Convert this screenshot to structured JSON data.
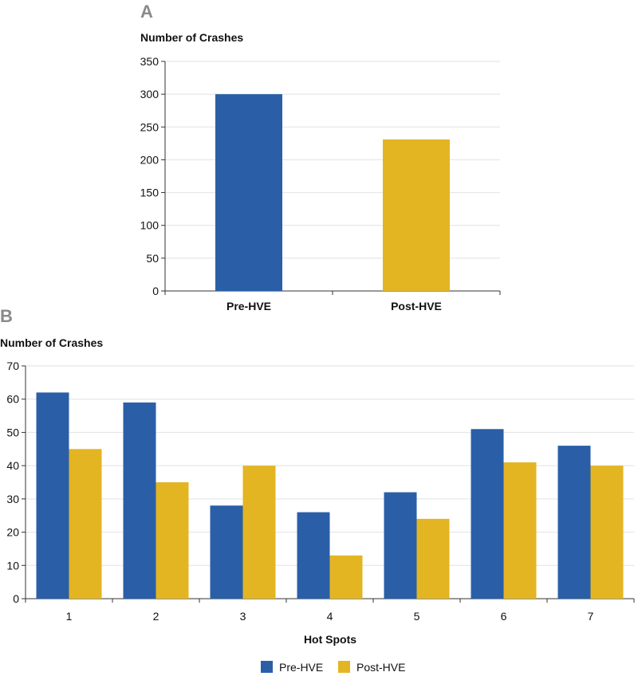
{
  "colors": {
    "pre": "#2a5fa8",
    "post": "#e3b523",
    "grid": "#e2e2e2",
    "axis": "#333333"
  },
  "chart_data": [
    {
      "panel": "A",
      "type": "bar",
      "ylabel": "Number of Crashes",
      "xlabel": "",
      "categories": [
        "Pre-HVE",
        "Post-HVE"
      ],
      "values": [
        300,
        231
      ],
      "ylim": [
        0,
        350
      ],
      "yticks": [
        0,
        50,
        100,
        150,
        200,
        250,
        300,
        350
      ],
      "grid": true
    },
    {
      "panel": "B",
      "type": "bar",
      "ylabel": "Number of Crashes",
      "xlabel": "Hot Spots",
      "categories": [
        "1",
        "2",
        "3",
        "4",
        "5",
        "6",
        "7"
      ],
      "series": [
        {
          "name": "Pre-HVE",
          "values": [
            62,
            59,
            28,
            26,
            32,
            51,
            46
          ]
        },
        {
          "name": "Post-HVE",
          "values": [
            45,
            35,
            40,
            13,
            24,
            41,
            40
          ]
        }
      ],
      "ylim": [
        0,
        70
      ],
      "yticks": [
        0,
        10,
        20,
        30,
        40,
        50,
        60,
        70
      ],
      "grid": true,
      "legend": "bottom-center"
    }
  ]
}
